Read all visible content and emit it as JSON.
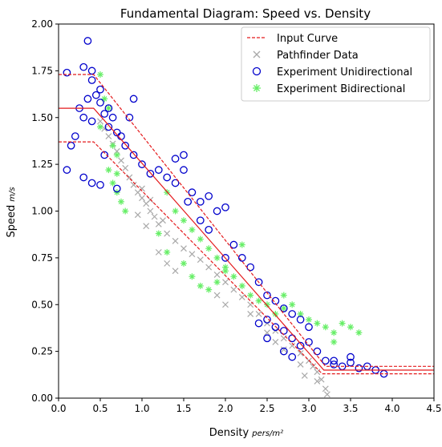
{
  "chart_data": {
    "type": "scatter",
    "title": "Fundamental Diagram: Speed vs. Density",
    "xlabel": "Density",
    "xlabel_unit": "pers/m²",
    "ylabel": "Speed",
    "ylabel_unit": "m/s",
    "xlim": [
      0.0,
      4.5
    ],
    "ylim": [
      0.0,
      2.0
    ],
    "xticks": [
      "0.0",
      "0.5",
      "1.0",
      "1.5",
      "2.0",
      "2.5",
      "3.0",
      "3.5",
      "4.0",
      "4.5"
    ],
    "yticks": [
      "0.00",
      "0.25",
      "0.50",
      "0.75",
      "1.00",
      "1.25",
      "1.50",
      "1.75",
      "2.00"
    ],
    "grid": false,
    "legend_position": "top-right",
    "legend": [
      {
        "label": "Input Curve",
        "marker": "dashed-line",
        "color": "#e41a1c"
      },
      {
        "label": "Pathfinder Data",
        "marker": "x",
        "color": "#a9a9a9"
      },
      {
        "label": "Experiment Unidirectional",
        "marker": "circle-open",
        "color": "#0000cc"
      },
      {
        "label": "Experiment Bidirectional",
        "marker": "star",
        "color": "#66ee66"
      }
    ],
    "input_curve": {
      "color": "#e41a1c",
      "mean": [
        [
          0.0,
          1.55
        ],
        [
          0.42,
          1.55
        ],
        [
          3.18,
          0.15
        ],
        [
          4.5,
          0.15
        ]
      ],
      "upper": [
        [
          0.0,
          1.73
        ],
        [
          0.42,
          1.73
        ],
        [
          3.2,
          0.17
        ],
        [
          4.5,
          0.17
        ]
      ],
      "lower": [
        [
          0.0,
          1.37
        ],
        [
          0.42,
          1.37
        ],
        [
          3.16,
          0.13
        ],
        [
          4.5,
          0.13
        ]
      ]
    },
    "pathfinder_data": {
      "color": "#a9a9a9",
      "points": [
        [
          0.5,
          1.48
        ],
        [
          0.55,
          1.44
        ],
        [
          0.6,
          1.4
        ],
        [
          0.65,
          1.36
        ],
        [
          0.7,
          1.32
        ],
        [
          0.75,
          1.27
        ],
        [
          0.8,
          1.23
        ],
        [
          0.85,
          1.18
        ],
        [
          0.9,
          1.14
        ],
        [
          0.95,
          1.1
        ],
        [
          1.0,
          1.07
        ],
        [
          1.05,
          1.04
        ],
        [
          1.1,
          1.0
        ],
        [
          1.15,
          0.97
        ],
        [
          1.2,
          0.93
        ],
        [
          1.3,
          0.88
        ],
        [
          1.4,
          0.84
        ],
        [
          1.5,
          0.8
        ],
        [
          1.6,
          0.77
        ],
        [
          1.7,
          0.74
        ],
        [
          1.8,
          0.7
        ],
        [
          1.9,
          0.66
        ],
        [
          2.0,
          0.62
        ],
        [
          2.1,
          0.58
        ],
        [
          2.2,
          0.54
        ],
        [
          2.3,
          0.5
        ],
        [
          2.4,
          0.45
        ],
        [
          2.5,
          0.4
        ],
        [
          2.6,
          0.36
        ],
        [
          2.7,
          0.32
        ],
        [
          2.8,
          0.28
        ],
        [
          2.9,
          0.24
        ],
        [
          3.0,
          0.2
        ],
        [
          3.05,
          0.17
        ],
        [
          3.1,
          0.14
        ],
        [
          3.15,
          0.1
        ],
        [
          3.2,
          0.05
        ],
        [
          3.22,
          0.02
        ],
        [
          0.95,
          0.98
        ],
        [
          1.05,
          0.92
        ],
        [
          1.2,
          0.78
        ],
        [
          1.3,
          0.72
        ],
        [
          1.4,
          0.68
        ],
        [
          1.9,
          0.55
        ],
        [
          2.0,
          0.5
        ],
        [
          2.5,
          0.35
        ],
        [
          2.6,
          0.3
        ],
        [
          2.7,
          0.26
        ],
        [
          2.95,
          0.12
        ],
        [
          3.1,
          0.09
        ],
        [
          1.0,
          1.12
        ],
        [
          1.1,
          1.06
        ],
        [
          1.25,
          0.95
        ],
        [
          2.3,
          0.45
        ],
        [
          2.9,
          0.18
        ]
      ]
    },
    "experiment_unidirectional": {
      "color": "#0000cc",
      "points": [
        [
          0.1,
          1.74
        ],
        [
          0.35,
          1.91
        ],
        [
          0.3,
          1.77
        ],
        [
          0.4,
          1.7
        ],
        [
          0.45,
          1.62
        ],
        [
          0.35,
          1.6
        ],
        [
          0.25,
          1.55
        ],
        [
          0.3,
          1.5
        ],
        [
          0.4,
          1.48
        ],
        [
          0.5,
          1.58
        ],
        [
          0.55,
          1.52
        ],
        [
          0.6,
          1.45
        ],
        [
          0.65,
          1.5
        ],
        [
          0.7,
          1.42
        ],
        [
          0.75,
          1.4
        ],
        [
          0.8,
          1.35
        ],
        [
          0.85,
          1.5
        ],
        [
          0.9,
          1.6
        ],
        [
          0.2,
          1.4
        ],
        [
          0.15,
          1.35
        ],
        [
          0.1,
          1.22
        ],
        [
          0.3,
          1.18
        ],
        [
          0.4,
          1.15
        ],
        [
          0.5,
          1.14
        ],
        [
          0.7,
          1.12
        ],
        [
          0.9,
          1.3
        ],
        [
          1.0,
          1.25
        ],
        [
          1.1,
          1.2
        ],
        [
          1.2,
          1.22
        ],
        [
          1.3,
          1.18
        ],
        [
          1.4,
          1.15
        ],
        [
          1.5,
          1.3
        ],
        [
          1.6,
          1.1
        ],
        [
          1.7,
          1.05
        ],
        [
          1.8,
          1.08
        ],
        [
          1.9,
          1.0
        ],
        [
          2.0,
          1.02
        ],
        [
          1.55,
          1.05
        ],
        [
          1.7,
          0.95
        ],
        [
          1.8,
          0.9
        ],
        [
          2.1,
          0.82
        ],
        [
          2.2,
          0.75
        ],
        [
          2.3,
          0.7
        ],
        [
          2.4,
          0.62
        ],
        [
          2.5,
          0.55
        ],
        [
          2.6,
          0.52
        ],
        [
          2.7,
          0.48
        ],
        [
          2.8,
          0.45
        ],
        [
          2.9,
          0.42
        ],
        [
          3.0,
          0.38
        ],
        [
          2.5,
          0.42
        ],
        [
          2.6,
          0.38
        ],
        [
          2.7,
          0.36
        ],
        [
          2.8,
          0.32
        ],
        [
          2.9,
          0.28
        ],
        [
          3.0,
          0.3
        ],
        [
          3.1,
          0.25
        ],
        [
          2.4,
          0.4
        ],
        [
          2.5,
          0.32
        ],
        [
          2.7,
          0.25
        ],
        [
          2.8,
          0.22
        ],
        [
          3.2,
          0.2
        ],
        [
          3.3,
          0.18
        ],
        [
          3.4,
          0.17
        ],
        [
          3.5,
          0.19
        ],
        [
          3.6,
          0.16
        ],
        [
          3.7,
          0.17
        ],
        [
          3.8,
          0.15
        ],
        [
          3.9,
          0.13
        ],
        [
          3.5,
          0.22
        ],
        [
          3.3,
          0.2
        ],
        [
          1.4,
          1.28
        ],
        [
          1.5,
          1.22
        ],
        [
          0.6,
          1.55
        ],
        [
          0.5,
          1.65
        ],
        [
          0.4,
          1.75
        ],
        [
          0.55,
          1.3
        ],
        [
          2.0,
          0.75
        ]
      ]
    },
    "experiment_bidirectional": {
      "color": "#66ee66",
      "points": [
        [
          0.5,
          1.73
        ],
        [
          0.55,
          1.6
        ],
        [
          0.6,
          1.55
        ],
        [
          0.5,
          1.45
        ],
        [
          0.65,
          1.35
        ],
        [
          0.7,
          1.3
        ],
        [
          0.6,
          1.22
        ],
        [
          0.65,
          1.15
        ],
        [
          0.7,
          1.1
        ],
        [
          0.75,
          1.05
        ],
        [
          0.8,
          1.0
        ],
        [
          0.7,
          1.2
        ],
        [
          1.3,
          1.1
        ],
        [
          1.4,
          1.0
        ],
        [
          1.5,
          0.95
        ],
        [
          1.6,
          0.9
        ],
        [
          1.7,
          0.85
        ],
        [
          1.8,
          0.8
        ],
        [
          1.9,
          0.75
        ],
        [
          2.0,
          0.7
        ],
        [
          2.1,
          0.65
        ],
        [
          2.2,
          0.6
        ],
        [
          1.3,
          0.78
        ],
        [
          1.5,
          0.72
        ],
        [
          1.6,
          0.65
        ],
        [
          1.7,
          0.6
        ],
        [
          1.8,
          0.58
        ],
        [
          1.9,
          0.62
        ],
        [
          2.0,
          0.68
        ],
        [
          2.3,
          0.55
        ],
        [
          2.4,
          0.52
        ],
        [
          2.5,
          0.5
        ],
        [
          2.6,
          0.45
        ],
        [
          2.7,
          0.48
        ],
        [
          2.8,
          0.5
        ],
        [
          2.9,
          0.45
        ],
        [
          3.0,
          0.42
        ],
        [
          3.1,
          0.4
        ],
        [
          3.2,
          0.38
        ],
        [
          3.3,
          0.35
        ],
        [
          3.4,
          0.4
        ],
        [
          3.5,
          0.38
        ],
        [
          3.6,
          0.35
        ],
        [
          2.2,
          0.82
        ],
        [
          1.2,
          0.88
        ],
        [
          2.7,
          0.55
        ],
        [
          3.3,
          0.3
        ]
      ]
    }
  }
}
